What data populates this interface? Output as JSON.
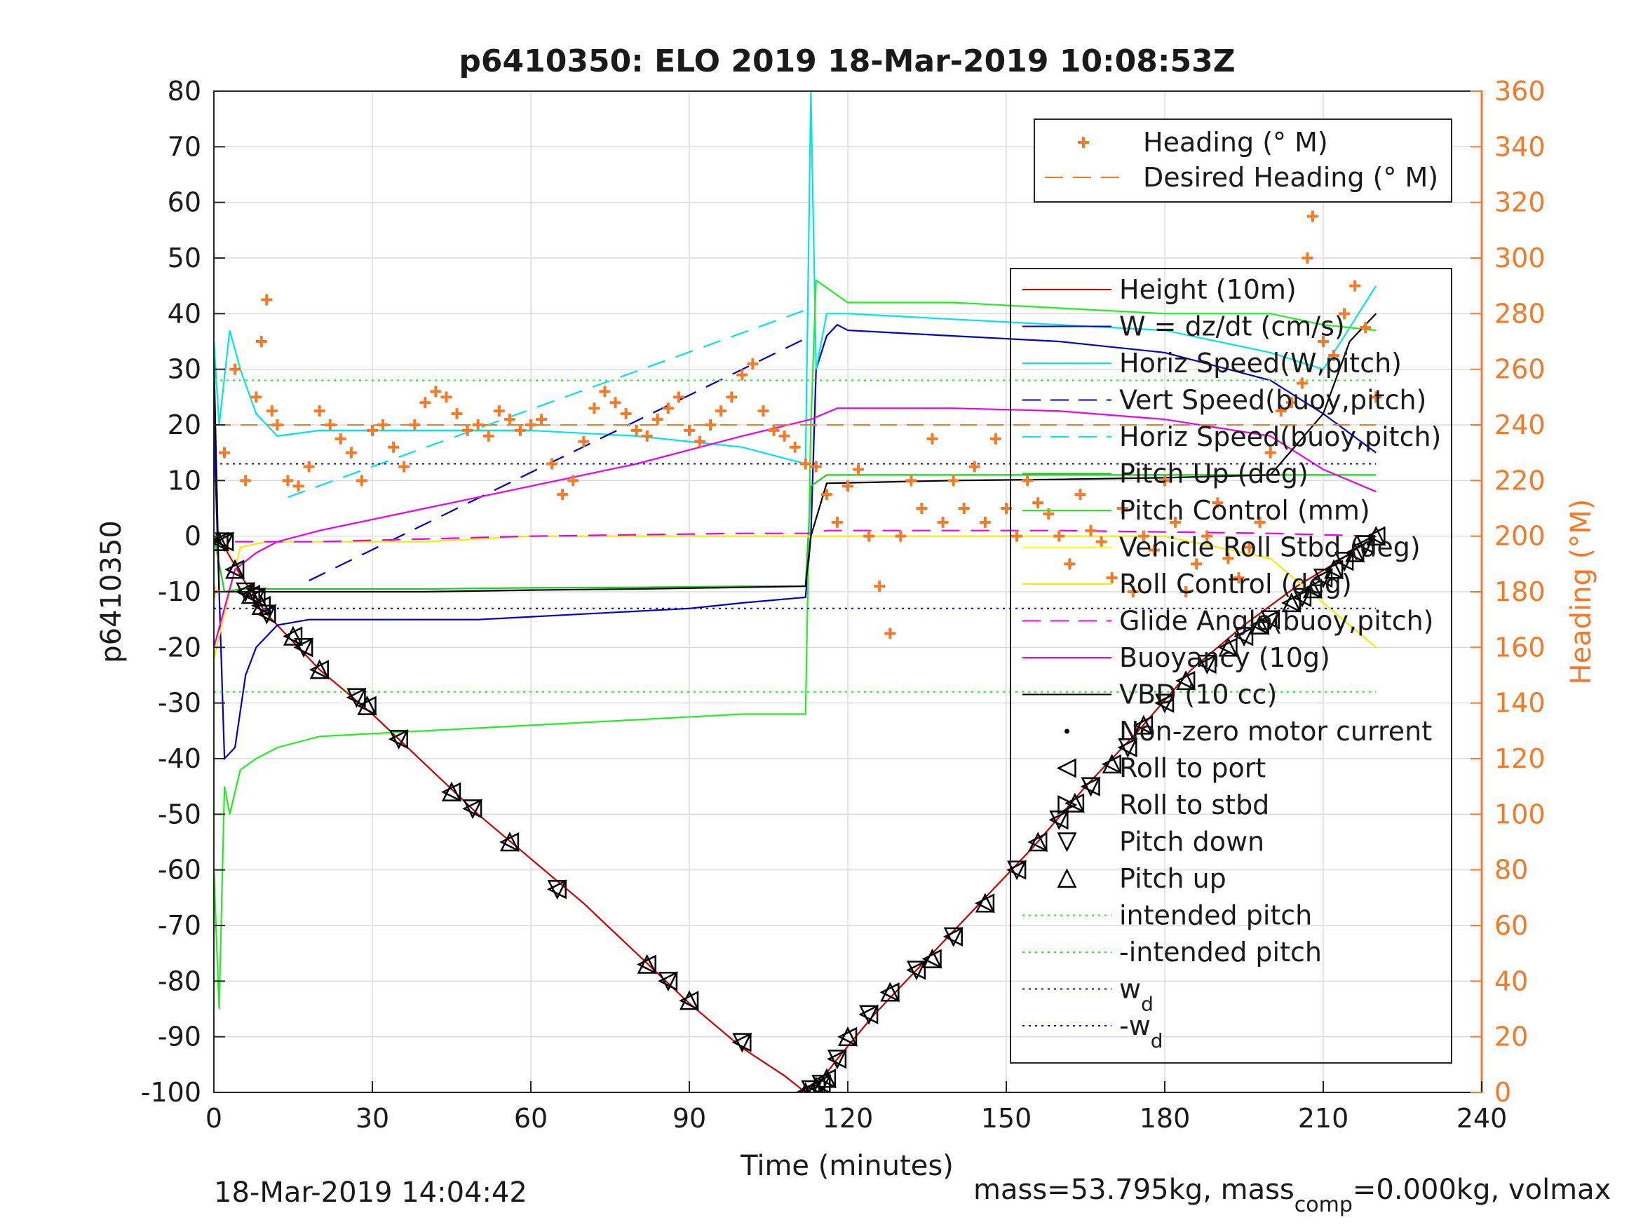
{
  "chart_data": {
    "type": "line",
    "title": "p6410350: ELO 2019 18-Mar-2019 10:08:53Z",
    "xlabel": "Time (minutes)",
    "ylabel": "p6410350",
    "y2label": "Heading (°M)",
    "xlim": [
      0,
      240
    ],
    "ylim": [
      -100,
      80
    ],
    "y2lim": [
      0,
      360
    ],
    "xticks": [
      "0",
      "30",
      "60",
      "90",
      "120",
      "150",
      "180",
      "210",
      "240"
    ],
    "yticks": [
      "80",
      "70",
      "60",
      "50",
      "40",
      "30",
      "20",
      "10",
      "0",
      "-10",
      "-20",
      "-30",
      "-40",
      "-50",
      "-60",
      "-70",
      "-80",
      "-90",
      "-100"
    ],
    "y2ticks": [
      "360",
      "340",
      "320",
      "300",
      "280",
      "260",
      "240",
      "220",
      "200",
      "180",
      "160",
      "140",
      "120",
      "100",
      "80",
      "60",
      "40",
      "20",
      "0"
    ],
    "grid": true,
    "footer_left": "18-Mar-2019 14:04:42",
    "footer_right": {
      "a": "mass=53.795kg, mass",
      "sub": "comp",
      "b": "=0.000kg, volmax"
    },
    "legend_heading": [
      {
        "label": "Heading (° M)",
        "color": "#f47a28",
        "style": "plus"
      },
      {
        "label": "Desired Heading (° M)",
        "color": "#f47a28",
        "style": "dash"
      }
    ],
    "legend_main": [
      {
        "label": "Height (10m)",
        "color": "#cc0000",
        "style": "line"
      },
      {
        "label": "W = dz/dt (cm/s)",
        "color": "#0000cc",
        "style": "line"
      },
      {
        "label": "Horiz Speed(W,pitch)",
        "color": "#00e5e5",
        "style": "line"
      },
      {
        "label": "Vert Speed(buoy,pitch)",
        "color": "#0000cc",
        "style": "dash"
      },
      {
        "label": "Horiz Speed(buoy,pitch)",
        "color": "#00e5e5",
        "style": "dash"
      },
      {
        "label": "Pitch Up (deg)",
        "color": "#22cc22",
        "style": "line"
      },
      {
        "label": "Pitch Control (mm)",
        "color": "#22ee22",
        "style": "line"
      },
      {
        "label": "Vehicle Roll Stbd (deg)",
        "color": "#ffff00",
        "style": "line"
      },
      {
        "label": "Roll Control (deg)",
        "color": "#eeee00",
        "style": "line"
      },
      {
        "label": "Glide Angle(buoy,pitch)",
        "color": "#ee00ee",
        "style": "dash"
      },
      {
        "label": "Buoyancy (10g)",
        "color": "#ee00ee",
        "style": "line"
      },
      {
        "label": "VBD (10 cc)",
        "color": "#000000",
        "style": "line"
      },
      {
        "label": "Non-zero motor current",
        "color": "#000000",
        "style": "dot"
      },
      {
        "label": "Roll to port",
        "color": "#000000",
        "style": "tri-left"
      },
      {
        "label": "Roll to stbd",
        "color": "#000000",
        "style": "tri-right"
      },
      {
        "label": "Pitch down",
        "color": "#000000",
        "style": "tri-down"
      },
      {
        "label": "Pitch up",
        "color": "#000000",
        "style": "tri-up"
      },
      {
        "label": "intended pitch",
        "color": "#22ee22",
        "style": "dot-line"
      },
      {
        "label": "-intended pitch",
        "color": "#22ee22",
        "style": "dot-line"
      },
      {
        "label": "w",
        "sub": "d",
        "color": "#0000ee",
        "style": "dot-line"
      },
      {
        "label": "-w",
        "sub": "d",
        "color": "#0000ee",
        "style": "dot-line"
      }
    ],
    "series": [
      {
        "name": "Height (10m)",
        "color": "#cc0000",
        "x": [
          0,
          2,
          5,
          10,
          20,
          30,
          40,
          50,
          60,
          70,
          80,
          90,
          100,
          108,
          112,
          114,
          118,
          125,
          135,
          145,
          155,
          165,
          175,
          185,
          195,
          205,
          212,
          220
        ],
        "y": [
          0,
          -2,
          -7,
          -14,
          -24,
          -32,
          -41,
          -50,
          -58,
          -66,
          -75,
          -84,
          -92,
          -97,
          -100,
          -99,
          -94,
          -86,
          -76,
          -66,
          -56,
          -45,
          -35,
          -24,
          -16,
          -9,
          -5,
          0
        ]
      },
      {
        "name": "W = dz/dt (cm/s)",
        "color": "#0000cc",
        "x": [
          0,
          1,
          2,
          4,
          6,
          8,
          12,
          18,
          30,
          50,
          70,
          90,
          100,
          112,
          113,
          114,
          116,
          118,
          120,
          140,
          160,
          180,
          200,
          210,
          220
        ],
        "y": [
          20,
          -10,
          -40,
          -38,
          -25,
          -20,
          -16,
          -15,
          -15,
          -15,
          -14,
          -13,
          -12,
          -11,
          0,
          30,
          36,
          38,
          37,
          36,
          35,
          33,
          28,
          22,
          15
        ]
      },
      {
        "name": "Horiz Speed(W,pitch)",
        "color": "#00e5e5",
        "x": [
          0,
          1,
          3,
          5,
          8,
          12,
          20,
          40,
          60,
          80,
          100,
          112,
          113,
          114,
          116,
          120,
          140,
          160,
          180,
          200,
          210,
          220
        ],
        "y": [
          35,
          20,
          37,
          30,
          22,
          18,
          19,
          19,
          19,
          18,
          16,
          13,
          80,
          30,
          40,
          40,
          39,
          38,
          37,
          33,
          30,
          45
        ]
      },
      {
        "name": "Vert Speed(buoy,pitch)",
        "color": "#0000cc",
        "dash": true,
        "x": [
          18,
          113
        ],
        "y": [
          -8,
          36
        ]
      },
      {
        "name": "Horiz Speed(buoy,pitch)",
        "color": "#00e5e5",
        "dash": true,
        "x": [
          14,
          113
        ],
        "y": [
          7,
          41
        ]
      },
      {
        "name": "Pitch Up (deg)",
        "color": "#22cc22",
        "x": [
          0,
          2,
          5,
          10,
          20,
          40,
          60,
          80,
          100,
          112,
          113,
          116,
          140,
          160,
          180,
          200,
          220
        ],
        "y": [
          0,
          -10,
          -9.5,
          -9.5,
          -9.5,
          -9.5,
          -9.3,
          -9.2,
          -9,
          -9,
          9,
          11,
          11,
          11,
          11,
          11,
          11
        ]
      },
      {
        "name": "Pitch Control (mm)",
        "color": "#22ee22",
        "x": [
          0,
          1,
          2,
          3,
          5,
          8,
          12,
          20,
          40,
          60,
          80,
          100,
          112,
          113,
          114,
          120,
          140,
          160,
          180,
          200,
          210,
          220
        ],
        "y": [
          -60,
          -85,
          -45,
          -50,
          -42,
          -40,
          -38,
          -36,
          -35,
          -34,
          -33,
          -32,
          -32,
          20,
          46,
          42,
          42,
          41,
          40,
          40,
          38,
          37
        ]
      },
      {
        "name": "Roll Control (deg)",
        "color": "#eeee00",
        "x": [
          0,
          5,
          10,
          20,
          40,
          60,
          80,
          100,
          112,
          116,
          140,
          160,
          180,
          200,
          220
        ],
        "y": [
          -22,
          -2,
          -1,
          -1,
          -1,
          0,
          0,
          0,
          0,
          0,
          0,
          0,
          0,
          -4,
          -20
        ]
      },
      {
        "name": "Glide Angle(buoy,pitch)",
        "color": "#ee00ee",
        "dash": true,
        "x": [
          4,
          20,
          60,
          100,
          113,
          116,
          160,
          200,
          220
        ],
        "y": [
          -1,
          -1,
          0,
          0.5,
          0.5,
          1,
          1,
          0.5,
          0
        ]
      },
      {
        "name": "Buoyancy (10g)",
        "color": "#ee00ee",
        "x": [
          0,
          4,
          8,
          12,
          20,
          40,
          60,
          80,
          100,
          113,
          118,
          140,
          160,
          180,
          200,
          210,
          220
        ],
        "y": [
          -20,
          -6,
          -3,
          -1,
          1,
          5,
          9,
          13,
          18,
          21,
          23,
          23,
          22.5,
          21,
          18,
          12,
          8
        ]
      },
      {
        "name": "VBD (10 cc)",
        "color": "#000000",
        "x": [
          0,
          1,
          2,
          20,
          40,
          60,
          80,
          100,
          112,
          113,
          116,
          140,
          160,
          180,
          200,
          210,
          215,
          220
        ],
        "y": [
          32,
          -10,
          -10,
          -10,
          -10,
          -9.7,
          -9.5,
          -9.2,
          -9,
          0,
          9.5,
          10,
          10.2,
          10.5,
          11,
          22,
          35,
          40
        ]
      },
      {
        "name": "intended pitch",
        "color": "#22ee22",
        "hline": 28
      },
      {
        "name": "-intended pitch",
        "color": "#22ee22",
        "hline": -28
      },
      {
        "name": "wd",
        "color": "#0000ee",
        "hline": 13
      },
      {
        "name": "-wd",
        "color": "#0000ee",
        "hline": -13
      }
    ],
    "heading": {
      "x": [
        0,
        2,
        4,
        6,
        8,
        9,
        10,
        11,
        12,
        14,
        16,
        18,
        20,
        22,
        24,
        26,
        28,
        30,
        32,
        34,
        36,
        38,
        40,
        42,
        44,
        46,
        48,
        50,
        52,
        54,
        56,
        58,
        60,
        62,
        64,
        66,
        68,
        70,
        72,
        74,
        76,
        78,
        80,
        82,
        84,
        86,
        88,
        90,
        92,
        94,
        96,
        98,
        100,
        102,
        104,
        106,
        108,
        110,
        112,
        114,
        116,
        118,
        120,
        122,
        124,
        126,
        128,
        130,
        132,
        134,
        136,
        138,
        140,
        142,
        144,
        146,
        148,
        150,
        152,
        154,
        156,
        158,
        160,
        162,
        164,
        166,
        168,
        170,
        172,
        174,
        176,
        178,
        180,
        182,
        184,
        186,
        188,
        190,
        192,
        194,
        196,
        198,
        200,
        202,
        204,
        206,
        207,
        208,
        210,
        212,
        214,
        216,
        218,
        220
      ],
      "y": [
        180,
        230,
        260,
        220,
        250,
        270,
        285,
        245,
        240,
        220,
        218,
        225,
        245,
        240,
        235,
        230,
        220,
        238,
        240,
        232,
        225,
        240,
        248,
        252,
        250,
        244,
        238,
        240,
        236,
        245,
        242,
        238,
        240,
        242,
        226,
        215,
        220,
        234,
        246,
        252,
        248,
        244,
        238,
        236,
        242,
        246,
        250,
        238,
        234,
        240,
        245,
        250,
        258,
        262,
        245,
        238,
        236,
        232,
        226,
        225,
        215,
        205,
        218,
        224,
        200,
        182,
        165,
        200,
        220,
        210,
        235,
        205,
        220,
        210,
        225,
        205,
        235,
        210,
        200,
        220,
        212,
        208,
        200,
        190,
        215,
        202,
        198,
        185,
        210,
        180,
        200,
        195,
        220,
        205,
        180,
        190,
        200,
        212,
        192,
        185,
        196,
        205,
        230,
        245,
        248,
        255,
        300,
        315,
        270,
        265,
        280,
        290,
        275,
        250
      ]
    },
    "desired_heading": 240,
    "markers": {
      "x": [
        1,
        2,
        4,
        6,
        7,
        8,
        9,
        10,
        15,
        17,
        20,
        27,
        29,
        35,
        45,
        49,
        56,
        65,
        82,
        86,
        90,
        100,
        112,
        113,
        114,
        115,
        116,
        118,
        120,
        124,
        128,
        133,
        136,
        140,
        146,
        152,
        156,
        160,
        163,
        166,
        170,
        173,
        176,
        180,
        184,
        188,
        192,
        195,
        198,
        200,
        204,
        206,
        208,
        210,
        212,
        214,
        216,
        218,
        220
      ],
      "y": [
        -1,
        -1,
        -6,
        -10,
        -10.5,
        -11,
        -12.5,
        -14,
        -18,
        -20,
        -24,
        -29,
        -30.5,
        -36.5,
        -46,
        -49,
        -55,
        -63.5,
        -77,
        -80,
        -83.5,
        -91,
        -100,
        -99.5,
        -99,
        -98.5,
        -97.5,
        -94,
        -90,
        -86,
        -82,
        -78,
        -76,
        -72,
        -66,
        -60,
        -55,
        -51,
        -48,
        -45,
        -41,
        -38,
        -34,
        -30,
        -26,
        -23,
        -20,
        -18,
        -16,
        -15,
        -12,
        -11,
        -9.5,
        -7.5,
        -6,
        -4.5,
        -3,
        -1.5,
        0
      ]
    }
  }
}
